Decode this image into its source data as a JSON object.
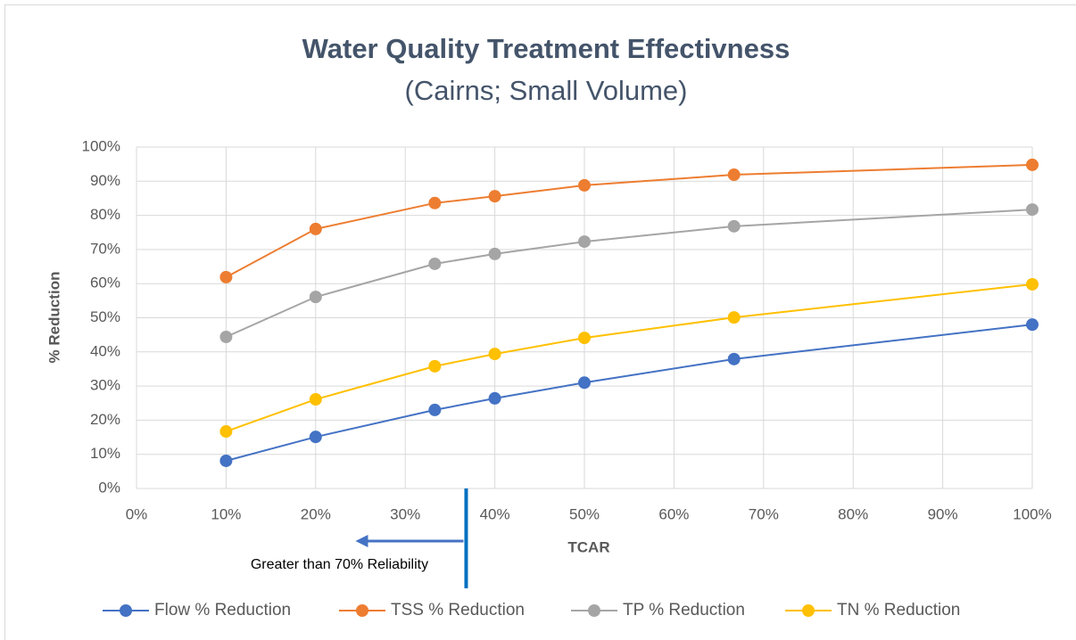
{
  "chart_data": {
    "type": "line",
    "title": "Water Quality Treatment Effectivness",
    "subtitle": "(Cairns; Small Volume)",
    "x_label": "TCAR",
    "y_label": "% Reduction",
    "x": [
      10,
      20,
      33.3,
      40,
      50,
      66.7,
      100
    ],
    "series": [
      {
        "name": "Flow % Reduction",
        "color": "#4472c4",
        "values": [
          8.1,
          15.1,
          23,
          26.4,
          31,
          37.9,
          48
        ]
      },
      {
        "name": "TSS % Reduction",
        "color": "#ed7d31",
        "values": [
          61.9,
          76,
          83.6,
          85.6,
          88.8,
          91.9,
          94.8
        ]
      },
      {
        "name": "TP % Reduction",
        "color": "#a5a5a5",
        "values": [
          44.4,
          56.1,
          65.8,
          68.7,
          72.3,
          76.8,
          81.7
        ]
      },
      {
        "name": "TN % Reduction",
        "color": "#ffc000",
        "values": [
          16.7,
          26.1,
          35.8,
          39.4,
          44.1,
          50.1,
          59.8
        ]
      }
    ],
    "xlim": [
      0,
      100
    ],
    "xticks": [
      {
        "value": 0,
        "label": "0%"
      },
      {
        "value": 10,
        "label": "10%"
      },
      {
        "value": 20,
        "label": "20%"
      },
      {
        "value": 30,
        "label": "30%"
      },
      {
        "value": 40,
        "label": "40%"
      },
      {
        "value": 50,
        "label": "50%"
      },
      {
        "value": 60,
        "label": "60%"
      },
      {
        "value": 70,
        "label": "70%"
      },
      {
        "value": 80,
        "label": "80%"
      },
      {
        "value": 90,
        "label": "90%"
      },
      {
        "value": 100,
        "label": "100%"
      }
    ],
    "ylim": [
      0,
      100
    ],
    "yticks": [
      {
        "value": 0,
        "label": "0%"
      },
      {
        "value": 10,
        "label": "10%"
      },
      {
        "value": 20,
        "label": "20%"
      },
      {
        "value": 30,
        "label": "30%"
      },
      {
        "value": 40,
        "label": "40%"
      },
      {
        "value": 50,
        "label": "50%"
      },
      {
        "value": 60,
        "label": "60%"
      },
      {
        "value": 70,
        "label": "70%"
      },
      {
        "value": 80,
        "label": "80%"
      },
      {
        "value": 90,
        "label": "90%"
      },
      {
        "value": 100,
        "label": "100%"
      }
    ],
    "grid": true,
    "legend": "bottom",
    "annotations": [
      {
        "text": "Greater than 70% Reliability",
        "x": 36.8,
        "color": "#0070c0"
      }
    ]
  }
}
